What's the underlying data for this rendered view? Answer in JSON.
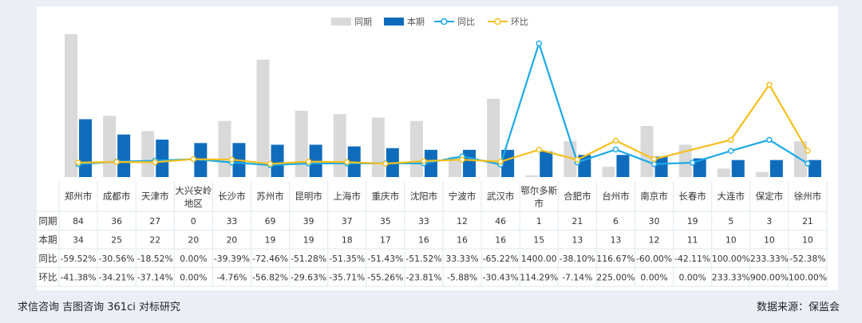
{
  "chart_data": {
    "type": "bar",
    "title": "",
    "categories": [
      "郑州市",
      "成都市",
      "天津市",
      "大兴安岭地区",
      "长沙市",
      "苏州市",
      "昆明市",
      "上海市",
      "重庆市",
      "沈阳市",
      "宁波市",
      "武汉市",
      "鄂尔多斯市",
      "合肥市",
      "台州市",
      "南京市",
      "长春市",
      "大连市",
      "保定市",
      "徐州市"
    ],
    "legend": [
      "同期",
      "本期",
      "同比",
      "环比"
    ],
    "legend_position": "top-center",
    "colors": {
      "同期": "#d9d9d9",
      "本期": "#0f6cbd",
      "同比": "#1aa9e6",
      "环比": "#f5bf1b"
    },
    "series": [
      {
        "name": "同期",
        "kind": "bar",
        "values": [
          84,
          36,
          27,
          0,
          33,
          69,
          39,
          37,
          35,
          33,
          12,
          46,
          1,
          21,
          6,
          30,
          19,
          5,
          3,
          21
        ]
      },
      {
        "name": "本期",
        "kind": "bar",
        "values": [
          34,
          25,
          22,
          20,
          20,
          19,
          19,
          18,
          17,
          16,
          16,
          16,
          15,
          13,
          13,
          12,
          11,
          10,
          10,
          10
        ]
      },
      {
        "name": "同比",
        "kind": "line",
        "values": [
          -59.52,
          -30.56,
          -18.52,
          0.0,
          -39.39,
          -72.46,
          -51.28,
          -51.35,
          -51.43,
          -51.52,
          33.33,
          -65.22,
          1400.0,
          -38.1,
          116.67,
          -60.0,
          -42.11,
          100.0,
          233.33,
          -52.38
        ]
      },
      {
        "name": "环比",
        "kind": "line",
        "values": [
          -41.38,
          -34.21,
          -37.14,
          0.0,
          -4.76,
          -56.82,
          -29.63,
          -35.71,
          -55.26,
          -23.81,
          -5.88,
          -30.43,
          114.29,
          -7.14,
          225.0,
          0.0,
          null,
          233.33,
          900.0,
          100.0
        ]
      }
    ],
    "bar_ylim": [
      0,
      90
    ],
    "line_ylim": [
      -120,
      1520
    ],
    "table": {
      "row_labels": [
        "同期",
        "本期",
        "同比",
        "环比"
      ],
      "rows": [
        [
          "84",
          "36",
          "27",
          "0",
          "33",
          "69",
          "39",
          "37",
          "35",
          "33",
          "12",
          "46",
          "1",
          "21",
          "6",
          "30",
          "19",
          "5",
          "3",
          "21"
        ],
        [
          "34",
          "25",
          "22",
          "20",
          "20",
          "19",
          "19",
          "18",
          "17",
          "16",
          "16",
          "16",
          "15",
          "13",
          "13",
          "12",
          "11",
          "10",
          "10",
          "10"
        ],
        [
          "-59.52%",
          "-30.56%",
          "-18.52%",
          "0.00%",
          "-39.39%",
          "-72.46%",
          "-51.28%",
          "-51.35%",
          "-51.43%",
          "-51.52%",
          "33.33%",
          "-65.22%",
          "1400.00",
          "-38.10%",
          "116.67%",
          "-60.00%",
          "-42.11%",
          "100.00%",
          "233.33%",
          "-52.38%"
        ],
        [
          "-41.38%",
          "-34.21%",
          "-37.14%",
          "0.00%",
          "-4.76%",
          "-56.82%",
          "-29.63%",
          "-35.71%",
          "-55.26%",
          "-23.81%",
          "-5.88%",
          "-30.43%",
          "114.29%",
          "-7.14%",
          "225.00%",
          "0.00%",
          "0.00%",
          "233.33%",
          "900.00%",
          "100.00%"
        ]
      ]
    }
  },
  "footer": {
    "left": "求信咨询  吉图咨询  361ci  对标研究",
    "right": "数据来源：保监会"
  }
}
